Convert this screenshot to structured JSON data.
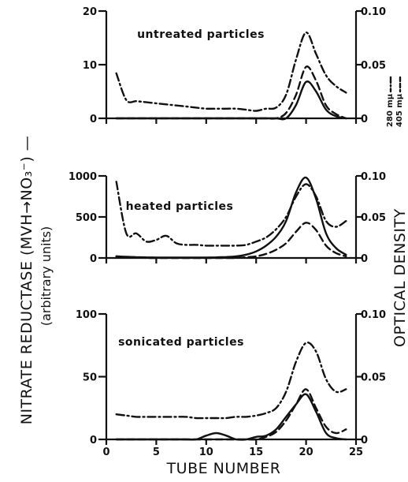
{
  "chart_data": [
    {
      "type": "line",
      "title": "untreated particles",
      "x": [
        1,
        2,
        3,
        4,
        5,
        6,
        7,
        8,
        9,
        10,
        11,
        12,
        13,
        14,
        15,
        16,
        17,
        18,
        19,
        20,
        21,
        22,
        23,
        24
      ],
      "ylim": [
        0,
        20
      ],
      "ylim_right": [
        0,
        0.1
      ],
      "left_ticks": [
        "0",
        "10",
        "20"
      ],
      "right_ticks": [
        "0",
        "0.05",
        "0.10"
      ],
      "series": [
        {
          "style": "solid",
          "axis": "left",
          "values": [
            0,
            0,
            0,
            0,
            0,
            0,
            0,
            0,
            0,
            0,
            0,
            0,
            0,
            0,
            0,
            0,
            0,
            0,
            2.5,
            6.8,
            5.0,
            1.6,
            0.4,
            0
          ]
        },
        {
          "style": "dash-dot",
          "axis": "right",
          "values": [
            0.042,
            0.017,
            0.016,
            0.015,
            0.014,
            0.013,
            0.012,
            0.011,
            0.01,
            0.009,
            0.009,
            0.009,
            0.009,
            0.008,
            0.007,
            0.009,
            0.01,
            0.022,
            0.055,
            0.08,
            0.06,
            0.04,
            0.03,
            0.024
          ]
        },
        {
          "style": "dashed",
          "axis": "right",
          "values": [
            0,
            0,
            0,
            0,
            0,
            0,
            0,
            0,
            0,
            0,
            0,
            0,
            0,
            0,
            0,
            0,
            0,
            0.005,
            0.022,
            0.048,
            0.035,
            0.012,
            0.004,
            0
          ]
        }
      ]
    },
    {
      "type": "line",
      "title": "heated particles",
      "x": [
        1,
        2,
        3,
        4,
        5,
        6,
        7,
        8,
        9,
        10,
        11,
        12,
        13,
        14,
        15,
        16,
        17,
        18,
        19,
        20,
        21,
        22,
        23,
        24
      ],
      "ylim": [
        0,
        1000
      ],
      "ylim_right": [
        0,
        0.1
      ],
      "left_ticks": [
        "0",
        "500",
        "1000"
      ],
      "right_ticks": [
        "0",
        "0.05",
        "0.10"
      ],
      "series": [
        {
          "style": "solid",
          "axis": "left",
          "values": [
            20,
            15,
            10,
            8,
            6,
            5,
            5,
            5,
            5,
            5,
            8,
            12,
            20,
            40,
            80,
            150,
            260,
            450,
            800,
            980,
            720,
            300,
            120,
            40
          ]
        },
        {
          "style": "dash-dot",
          "axis": "right",
          "values": [
            0.093,
            0.03,
            0.03,
            0.02,
            0.022,
            0.027,
            0.018,
            0.016,
            0.016,
            0.015,
            0.015,
            0.015,
            0.015,
            0.016,
            0.02,
            0.025,
            0.035,
            0.05,
            0.075,
            0.09,
            0.075,
            0.045,
            0.038,
            0.045
          ]
        },
        {
          "style": "dashed",
          "axis": "right",
          "values": [
            0.002,
            0.001,
            0.001,
            0,
            0,
            0,
            0,
            0,
            0,
            0,
            0,
            0,
            0,
            0.001,
            0.002,
            0.005,
            0.01,
            0.018,
            0.032,
            0.043,
            0.034,
            0.015,
            0.006,
            0.002
          ]
        }
      ]
    },
    {
      "type": "line",
      "title": "sonicated particles",
      "x": [
        1,
        2,
        3,
        4,
        5,
        6,
        7,
        8,
        9,
        10,
        11,
        12,
        13,
        14,
        15,
        16,
        17,
        18,
        19,
        20,
        21,
        22,
        23,
        24
      ],
      "ylim": [
        0,
        100
      ],
      "ylim_right": [
        0,
        0.1
      ],
      "left_ticks": [
        "0",
        "50",
        "100"
      ],
      "right_ticks": [
        "0",
        "0.05",
        "0.10"
      ],
      "series": [
        {
          "style": "solid",
          "axis": "left",
          "values": [
            0,
            0,
            0,
            0,
            0,
            0,
            0,
            0,
            0,
            3,
            5,
            3,
            0,
            0,
            2,
            3,
            8,
            18,
            28,
            36,
            22,
            5,
            1,
            0
          ]
        },
        {
          "style": "dash-dot",
          "axis": "right",
          "values": [
            0.02,
            0.019,
            0.018,
            0.018,
            0.018,
            0.018,
            0.018,
            0.018,
            0.017,
            0.017,
            0.017,
            0.017,
            0.018,
            0.018,
            0.019,
            0.021,
            0.025,
            0.038,
            0.062,
            0.077,
            0.07,
            0.048,
            0.038,
            0.04
          ]
        },
        {
          "style": "dashed",
          "axis": "right",
          "values": [
            0,
            0,
            0,
            0,
            0,
            0,
            0,
            0,
            0,
            0,
            0,
            0,
            0,
            0,
            0,
            0.002,
            0.006,
            0.015,
            0.028,
            0.04,
            0.025,
            0.01,
            0.005,
            0.008
          ]
        }
      ]
    }
  ],
  "x_ticks": [
    "0",
    "5",
    "10",
    "15",
    "20",
    "25"
  ],
  "x_axis_label": "TUBE NUMBER",
  "left_axis_label_line1": "NITRATE REDUCTASE (MVH→NO₃⁻) —",
  "left_axis_label_line2": "(arbitrary units)",
  "right_axis_label": "OPTICAL DENSITY",
  "legend": [
    {
      "label": "280 mμ",
      "style": "dash-dot"
    },
    {
      "label": "405 mμ",
      "style": "dashed"
    }
  ]
}
